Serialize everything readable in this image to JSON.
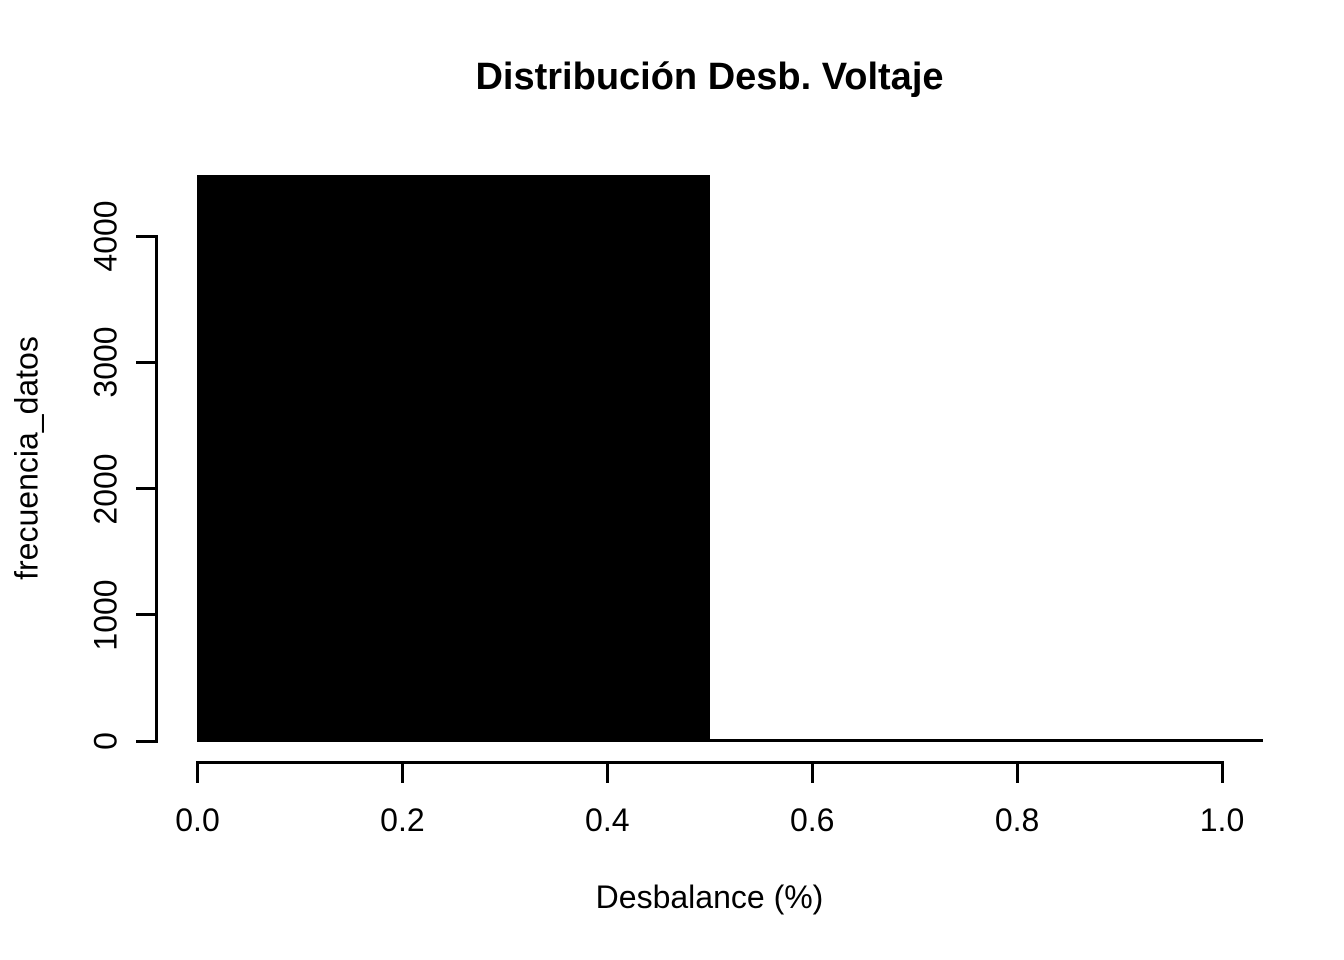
{
  "chart_data": {
    "type": "bar",
    "subtype": "histogram",
    "title": "Distribución Desb. Voltaje",
    "xlabel": "Desbalance (%)",
    "ylabel": "frecuencia_datos",
    "x_tick_values": [
      0.0,
      0.2,
      0.4,
      0.6,
      0.8,
      1.0
    ],
    "x_tick_labels": [
      "0.0",
      "0.2",
      "0.4",
      "0.6",
      "0.8",
      "1.0"
    ],
    "y_tick_values": [
      0,
      1000,
      2000,
      3000,
      4000
    ],
    "y_tick_labels": [
      "0",
      "1000",
      "2000",
      "3000",
      "4000"
    ],
    "xlim": [
      0,
      1.04
    ],
    "ylim": [
      0,
      4470
    ],
    "bins": [
      {
        "from": 0.0,
        "to": 0.5,
        "count": 4470
      },
      {
        "from": 0.5,
        "to": 1.04,
        "count": 10
      }
    ],
    "grid": false,
    "legend": null,
    "bar_fill": "#000000",
    "bar_stroke": "#000000",
    "axis_color": "#000000",
    "text_color": "#000000",
    "background": "#ffffff"
  }
}
